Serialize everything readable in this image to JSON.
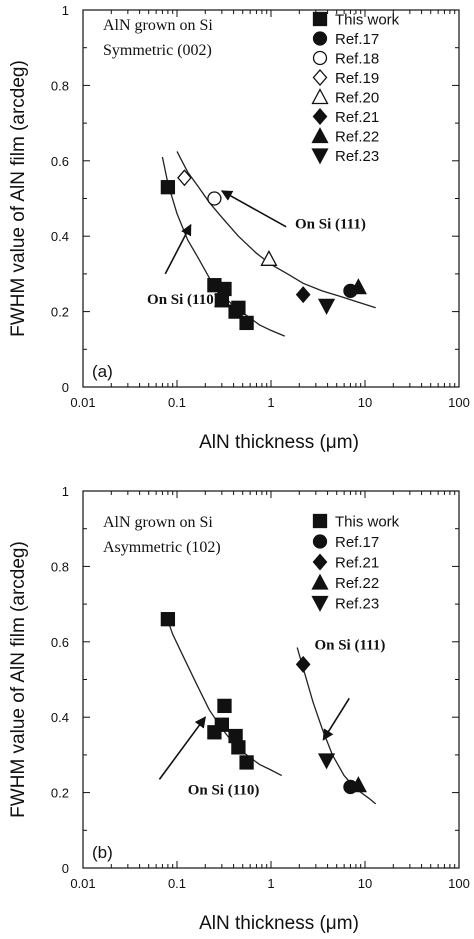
{
  "chart_data": [
    {
      "type": "scatter",
      "panel_label": "(a)",
      "xlabel": "AlN thickness (μm)",
      "ylabel": "FWHM value of AlN film (arcdeg)",
      "xscale": "log",
      "xlim": [
        0.01,
        100
      ],
      "ylim": [
        0,
        1
      ],
      "xticks": [
        "0.01",
        "0.1",
        "1",
        "10",
        "100"
      ],
      "yticks": [
        "0",
        "0.2",
        "0.4",
        "0.6",
        "0.8",
        "1"
      ],
      "inset_title": [
        "AlN grown on Si",
        "Symmetric (002)"
      ],
      "legend_position": "top-right",
      "series": [
        {
          "name": "This work",
          "marker": "square-filled",
          "x": [
            0.08,
            0.25,
            0.3,
            0.32,
            0.42,
            0.45,
            0.55
          ],
          "y": [
            0.53,
            0.27,
            0.23,
            0.26,
            0.2,
            0.21,
            0.17
          ]
        },
        {
          "name": "Ref.17",
          "marker": "circle-filled",
          "x": [
            7
          ],
          "y": [
            0.255
          ]
        },
        {
          "name": "Ref.18",
          "marker": "circle-open",
          "x": [
            0.25
          ],
          "y": [
            0.5
          ]
        },
        {
          "name": "Ref.19",
          "marker": "diamond-open",
          "x": [
            0.12
          ],
          "y": [
            0.555
          ]
        },
        {
          "name": "Ref.20",
          "marker": "triangle-up-open",
          "x": [
            0.95
          ],
          "y": [
            0.34
          ]
        },
        {
          "name": "Ref.21",
          "marker": "diamond-filled",
          "x": [
            2.2
          ],
          "y": [
            0.245
          ]
        },
        {
          "name": "Ref.22",
          "marker": "triangle-up-filled",
          "x": [
            8.5
          ],
          "y": [
            0.265
          ]
        },
        {
          "name": "Ref.23",
          "marker": "triangle-down-filled",
          "x": [
            3.9
          ],
          "y": [
            0.215
          ]
        }
      ],
      "fit_curves": [
        {
          "label": "On Si (110)",
          "x": [
            0.07,
            0.08,
            0.1,
            0.13,
            0.17,
            0.22,
            0.3,
            0.4,
            0.55,
            0.75,
            1.0,
            1.4
          ],
          "y": [
            0.61,
            0.54,
            0.46,
            0.39,
            0.34,
            0.29,
            0.245,
            0.215,
            0.19,
            0.165,
            0.15,
            0.135
          ]
        },
        {
          "label": "On Si (111)",
          "x": [
            0.1,
            0.13,
            0.17,
            0.22,
            0.3,
            0.45,
            0.7,
            1.0,
            1.5,
            2.2,
            3.5,
            5.5,
            8.5,
            13
          ],
          "y": [
            0.625,
            0.57,
            0.53,
            0.49,
            0.45,
            0.4,
            0.355,
            0.325,
            0.3,
            0.275,
            0.255,
            0.24,
            0.225,
            0.21
          ]
        }
      ],
      "annotations": [
        {
          "text": "On Si (111)",
          "text_at": [
            1.8,
            0.42
          ],
          "arrow_from": [
            1.45,
            0.425
          ],
          "arrow_to": [
            0.3,
            0.52
          ]
        },
        {
          "text": "On Si (110)",
          "text_at": [
            0.048,
            0.22
          ],
          "arrow_from": [
            0.075,
            0.3
          ],
          "arrow_to": [
            0.14,
            0.43
          ]
        }
      ]
    },
    {
      "type": "scatter",
      "panel_label": "(b)",
      "xlabel": "AlN thickness (μm)",
      "ylabel": "FWHM value of AlN film (arcdeg)",
      "xscale": "log",
      "xlim": [
        0.01,
        100
      ],
      "ylim": [
        0,
        1
      ],
      "xticks": [
        "0.01",
        "0.1",
        "1",
        "10",
        "100"
      ],
      "yticks": [
        "0",
        "0.2",
        "0.4",
        "0.6",
        "0.8",
        "1"
      ],
      "inset_title": [
        "AlN grown on Si",
        "Asymmetric (102)"
      ],
      "legend_position": "top-right",
      "series": [
        {
          "name": "This work",
          "marker": "square-filled",
          "x": [
            0.08,
            0.25,
            0.3,
            0.32,
            0.42,
            0.45,
            0.55
          ],
          "y": [
            0.66,
            0.36,
            0.38,
            0.43,
            0.35,
            0.32,
            0.28
          ]
        },
        {
          "name": "Ref.17",
          "marker": "circle-filled",
          "x": [
            7
          ],
          "y": [
            0.215
          ]
        },
        {
          "name": "Ref.21",
          "marker": "diamond-filled",
          "x": [
            2.2
          ],
          "y": [
            0.54
          ]
        },
        {
          "name": "Ref.22",
          "marker": "triangle-up-filled",
          "x": [
            8.5
          ],
          "y": [
            0.22
          ]
        },
        {
          "name": "Ref.23",
          "marker": "triangle-down-filled",
          "x": [
            3.9
          ],
          "y": [
            0.285
          ]
        }
      ],
      "fit_curves": [
        {
          "label": "On Si (110)",
          "x": [
            0.075,
            0.09,
            0.12,
            0.16,
            0.22,
            0.3,
            0.4,
            0.55,
            0.75,
            1.0,
            1.3
          ],
          "y": [
            0.675,
            0.62,
            0.555,
            0.49,
            0.42,
            0.37,
            0.33,
            0.3,
            0.275,
            0.26,
            0.245
          ]
        },
        {
          "label": "On Si (111)",
          "x": [
            1.9,
            2.2,
            2.8,
            3.5,
            4.5,
            6.0,
            8.0,
            11,
            13
          ],
          "y": [
            0.585,
            0.53,
            0.44,
            0.37,
            0.3,
            0.245,
            0.21,
            0.185,
            0.17
          ]
        }
      ],
      "annotations": [
        {
          "text": "On Si (111)",
          "text_at": [
            2.9,
            0.58
          ],
          "arrow_from": [
            6.8,
            0.45
          ],
          "arrow_to": [
            3.6,
            0.34
          ]
        },
        {
          "text": "On Si (110)",
          "text_at": [
            0.13,
            0.195
          ],
          "arrow_from": [
            0.065,
            0.235
          ],
          "arrow_to": [
            0.2,
            0.4
          ]
        }
      ]
    }
  ]
}
